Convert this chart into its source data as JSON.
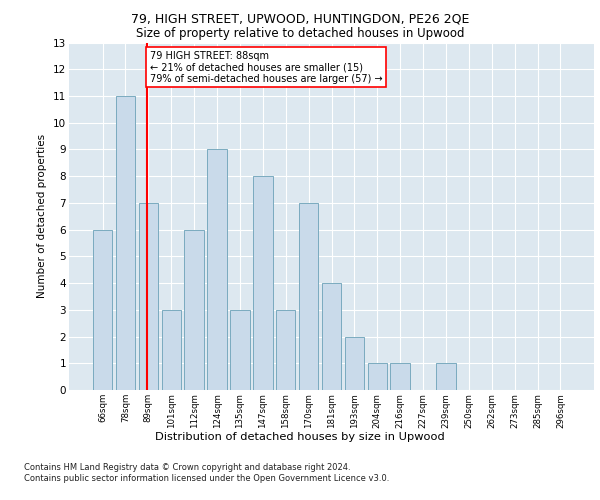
{
  "title1": "79, HIGH STREET, UPWOOD, HUNTINGDON, PE26 2QE",
  "title2": "Size of property relative to detached houses in Upwood",
  "xlabel": "Distribution of detached houses by size in Upwood",
  "ylabel": "Number of detached properties",
  "bins": [
    "66sqm",
    "78sqm",
    "89sqm",
    "101sqm",
    "112sqm",
    "124sqm",
    "135sqm",
    "147sqm",
    "158sqm",
    "170sqm",
    "181sqm",
    "193sqm",
    "204sqm",
    "216sqm",
    "227sqm",
    "239sqm",
    "250sqm",
    "262sqm",
    "273sqm",
    "285sqm",
    "296sqm"
  ],
  "values": [
    6,
    11,
    7,
    3,
    6,
    9,
    3,
    8,
    3,
    7,
    4,
    2,
    1,
    1,
    0,
    1,
    0,
    0,
    0,
    0,
    0
  ],
  "bar_color": "#c9daea",
  "bar_edge_color": "#7aaabf",
  "annotation_line1": "79 HIGH STREET: 88sqm",
  "annotation_line2": "← 21% of detached houses are smaller (15)",
  "annotation_line3": "79% of semi-detached houses are larger (57) →",
  "footnote1": "Contains HM Land Registry data © Crown copyright and database right 2024.",
  "footnote2": "Contains public sector information licensed under the Open Government Licence v3.0.",
  "ylim": [
    0,
    13
  ],
  "yticks": [
    0,
    1,
    2,
    3,
    4,
    5,
    6,
    7,
    8,
    9,
    10,
    11,
    12,
    13
  ],
  "background_color": "#dde8f0",
  "plot_background": "#dde8f0"
}
